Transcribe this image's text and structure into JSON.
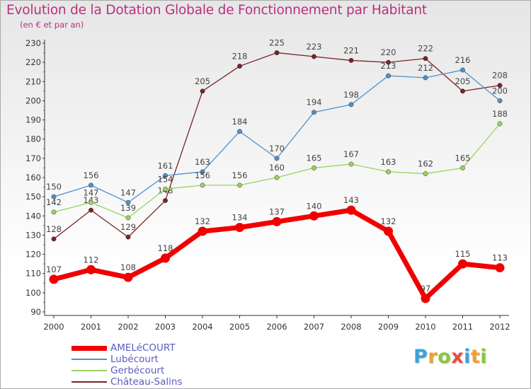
{
  "header": {
    "title": "Evolution de la Dotation Globale de Fonctionnement par Habitant",
    "subtitle": "(en € et par an)"
  },
  "logo": {
    "letters": [
      "P",
      "r",
      "o",
      "x",
      "i",
      "t",
      "i"
    ],
    "colors": [
      "#3aa3dc",
      "#f0a030",
      "#8cc63f",
      "#e84c3d",
      "#3aa3dc",
      "#f0a030",
      "#8cc63f"
    ]
  },
  "chart_data": {
    "type": "line",
    "title": "Evolution de la Dotation Globale de Fonctionnement par Habitant",
    "subtitle": "(en € et par an)",
    "xlabel": "",
    "ylabel": "",
    "ylim": [
      90,
      230
    ],
    "yticks": [
      "90",
      "100",
      "110",
      "120",
      "130",
      "140",
      "150",
      "160",
      "170",
      "180",
      "190",
      "200",
      "210",
      "220",
      "230"
    ],
    "grid": false,
    "legend_position": "bottom-left",
    "categories": [
      "2000",
      "2001",
      "2002",
      "2003",
      "2004",
      "2005",
      "2006",
      "2007",
      "2008",
      "2009",
      "2010",
      "2011",
      "2012"
    ],
    "series": [
      {
        "name": "Château-Salins",
        "color": "#7a2226",
        "emphasis": false,
        "values": [
          128,
          143,
          129,
          148,
          205,
          218,
          225,
          223,
          221,
          220,
          222,
          205,
          208
        ]
      },
      {
        "name": "Lubécourt",
        "color": "#4f90c8",
        "emphasis": false,
        "values": [
          150,
          156,
          147,
          161,
          163,
          184,
          170,
          194,
          198,
          213,
          212,
          216,
          200
        ]
      },
      {
        "name": "Gerbécourt",
        "color": "#99d25e",
        "emphasis": false,
        "values": [
          142,
          147,
          139,
          154,
          156,
          156,
          160,
          165,
          167,
          163,
          162,
          165,
          188
        ]
      },
      {
        "name": "AMELéCOURT",
        "color": "#f00000",
        "emphasis": true,
        "values": [
          107,
          112,
          108,
          118,
          132,
          134,
          137,
          140,
          143,
          132,
          97,
          115,
          113
        ]
      }
    ],
    "legend_order": [
      "AMELéCOURT",
      "Lubécourt",
      "Gerbécourt",
      "Château-Salins"
    ]
  }
}
